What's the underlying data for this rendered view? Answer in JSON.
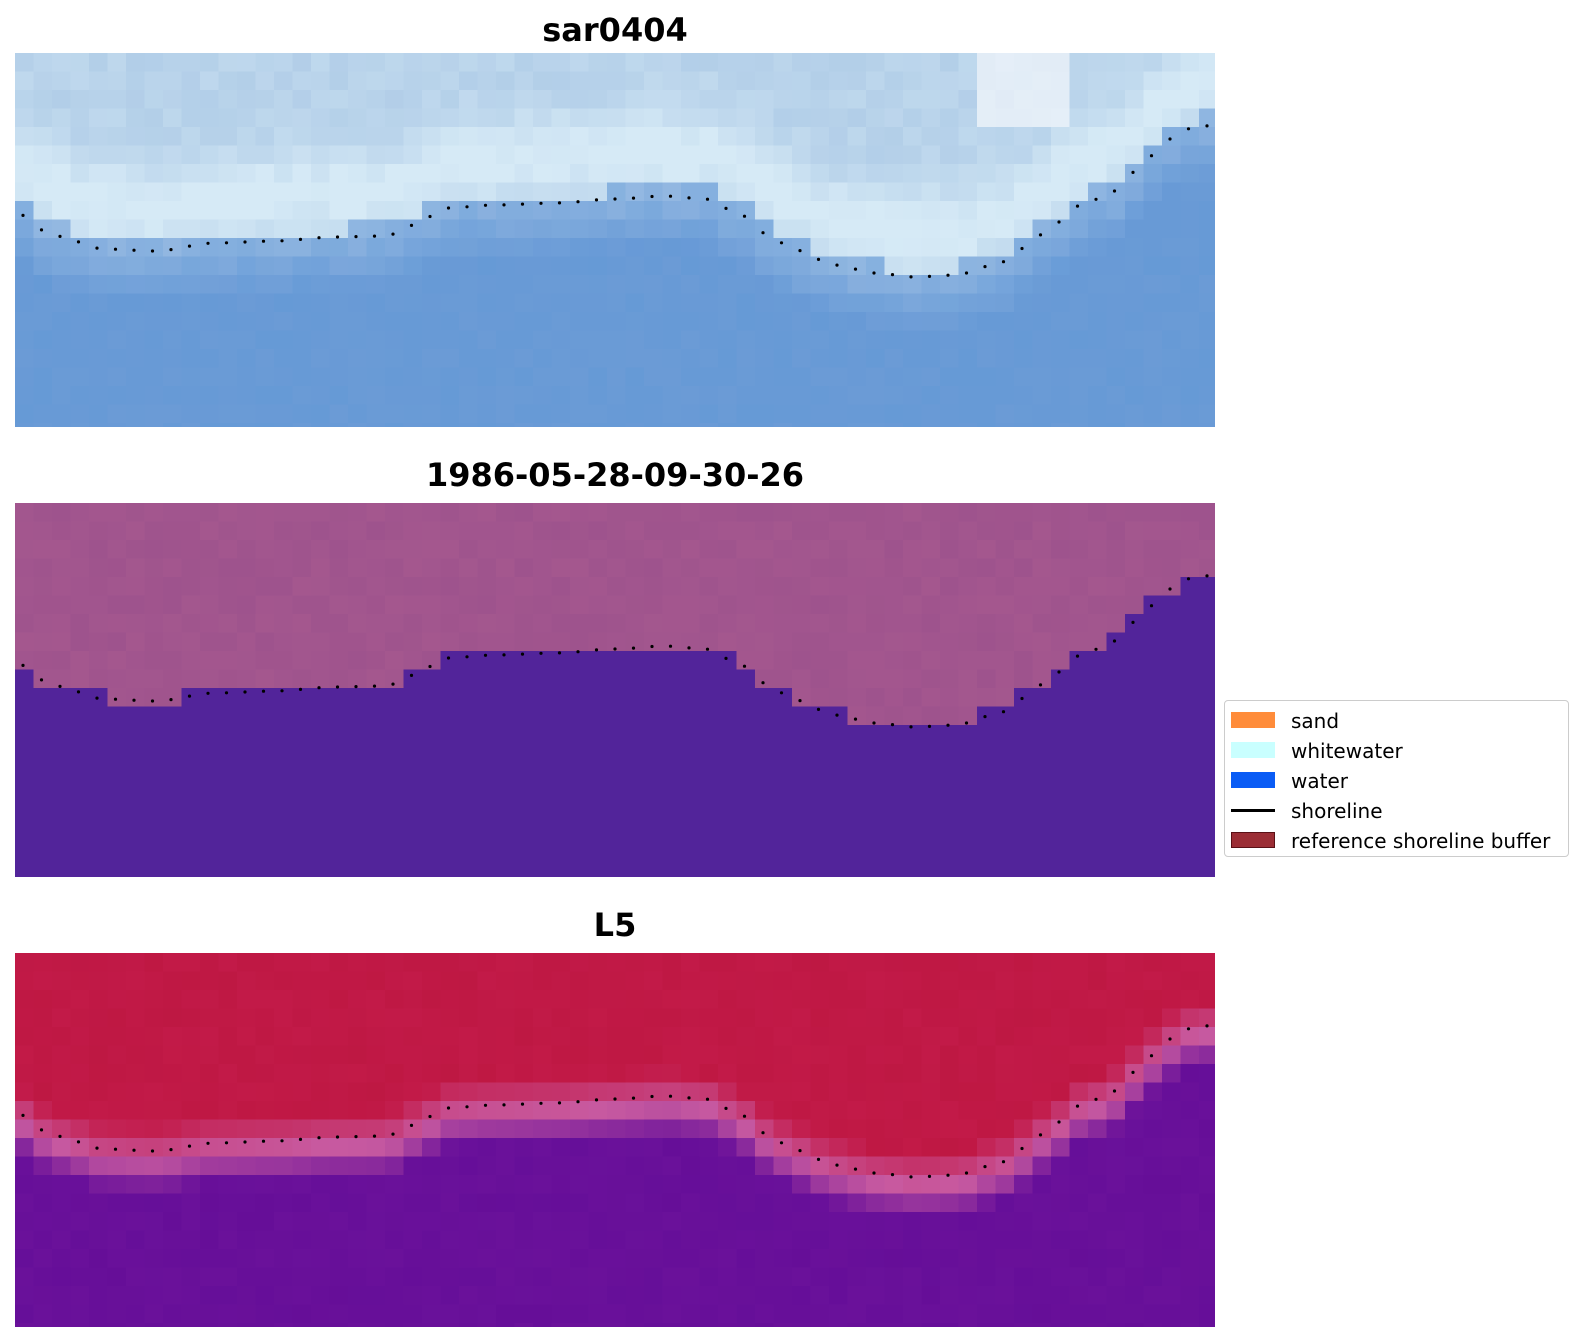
{
  "panels": [
    {
      "id": "top",
      "title": "sar0404",
      "colormap": "sar"
    },
    {
      "id": "middle",
      "title": "1986-05-28-09-30-26",
      "colormap": "classified"
    },
    {
      "id": "bottom",
      "title": "L5",
      "colormap": "index"
    }
  ],
  "legend": {
    "items": [
      {
        "label": "sand",
        "kind": "patch",
        "color": "#ff8c3a",
        "edge": ""
      },
      {
        "label": "whitewater",
        "kind": "patch",
        "color": "#c9ffff",
        "edge": ""
      },
      {
        "label": "water",
        "kind": "patch",
        "color": "#0a5cf5",
        "edge": ""
      },
      {
        "label": "shoreline",
        "kind": "line",
        "color": "#000000",
        "edge": ""
      },
      {
        "label": "reference shoreline buffer",
        "kind": "patch",
        "color": "#9b2d35",
        "edge": "#5a1016"
      }
    ]
  },
  "colors": {
    "sar_water": "#6b9bd6",
    "sar_bright": "#d6eaf6",
    "classified_water": "#52249a",
    "classified_land": "#a4578e",
    "index_land": "#c21a48",
    "index_water": "#6a119a",
    "shoreline_dots": "#000000"
  }
}
